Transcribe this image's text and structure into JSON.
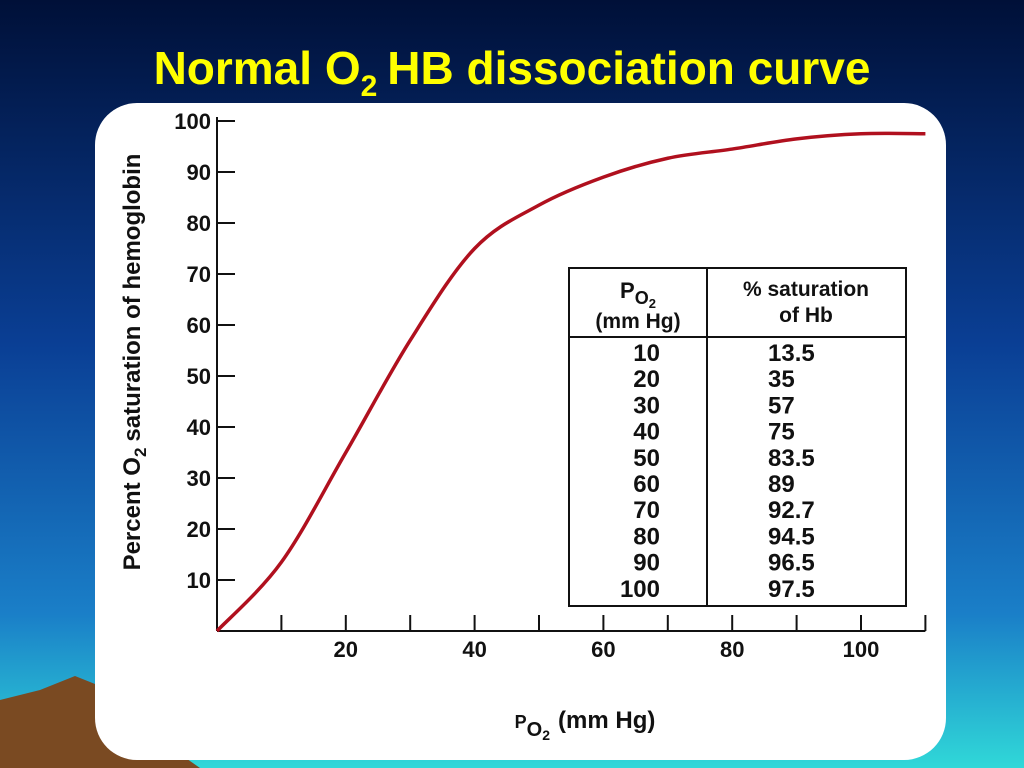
{
  "chart_data": {
    "type": "line",
    "title": [
      "Normal O",
      "2",
      "HB dissociation curve"
    ],
    "y_label": [
      "Percent O",
      "2",
      "saturation of hemoglobin"
    ],
    "x_label": [
      "P",
      "O",
      "2",
      "(mm Hg)"
    ],
    "xlim": [
      0,
      110
    ],
    "ylim": [
      0,
      100
    ],
    "xticks": [
      20,
      40,
      60,
      80,
      100
    ],
    "xminor_ticks": [
      10,
      30,
      50,
      70,
      90,
      110
    ],
    "yticks": [
      10,
      20,
      30,
      40,
      50,
      60,
      70,
      80,
      90,
      100
    ],
    "series": [
      {
        "color": "#b0101e",
        "x": [
          0,
          10,
          20,
          30,
          40,
          50,
          60,
          70,
          80,
          90,
          100,
          110
        ],
        "values": [
          0,
          13.5,
          35,
          57,
          75,
          83.5,
          89,
          92.7,
          94.5,
          96.5,
          97.5,
          97.5
        ]
      }
    ],
    "table": {
      "header": [
        [
          "P",
          "O",
          "2",
          "(mm Hg)"
        ],
        [
          "% saturation",
          "of Hb"
        ]
      ],
      "rows": [
        [
          "10",
          "13.5"
        ],
        [
          "20",
          "35"
        ],
        [
          "30",
          "57"
        ],
        [
          "40",
          "75"
        ],
        [
          "50",
          "83.5"
        ],
        [
          "60",
          "89"
        ],
        [
          "70",
          "92.7"
        ],
        [
          "80",
          "94.5"
        ],
        [
          "90",
          "96.5"
        ],
        [
          "100",
          "97.5"
        ]
      ]
    }
  }
}
